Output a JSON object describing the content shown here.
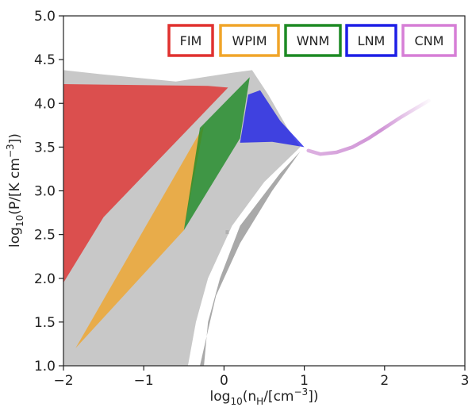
{
  "chart_data": {
    "type": "scatter",
    "title": "",
    "xlabel": {
      "prefix": "log",
      "sub": "10",
      "mid": "(n",
      "sub2": "H",
      "mid2": "/[cm",
      "sup": "−3",
      "suffix": "])"
    },
    "ylabel": {
      "prefix": "log",
      "sub": "10",
      "mid": "(P/[K cm",
      "sup": "−3",
      "suffix": "])"
    },
    "xlim": [
      -2,
      3
    ],
    "ylim": [
      1.0,
      5.0
    ],
    "xticks": [
      -2,
      -1,
      0,
      1,
      2,
      3
    ],
    "xtick_labels": [
      "−2",
      "−1",
      "0",
      "1",
      "2",
      "3"
    ],
    "yticks": [
      1.0,
      1.5,
      2.0,
      2.5,
      3.0,
      3.5,
      4.0,
      4.5,
      5.0
    ],
    "ytick_labels": [
      "1.0",
      "1.5",
      "2.0",
      "2.5",
      "3.0",
      "3.5",
      "4.0",
      "4.5",
      "5.0"
    ],
    "grid": false,
    "legend_position": "top-right",
    "background_color": "#c8c8c8",
    "series": [
      {
        "name": "FIM",
        "color": "#e0312f",
        "polygon": [
          [
            -2,
            1.95
          ],
          [
            -1.5,
            2.7
          ],
          [
            0.05,
            4.18
          ],
          [
            -0.2,
            4.2
          ],
          [
            -2,
            4.22
          ]
        ]
      },
      {
        "name": "WPIM",
        "color": "#f0a52a",
        "polygon": [
          [
            -1.85,
            1.2
          ],
          [
            -0.25,
            3.75
          ],
          [
            -0.5,
            2.55
          ]
        ]
      },
      {
        "name": "WNM",
        "color": "#1d8a24",
        "polygon": [
          [
            -0.5,
            2.55
          ],
          [
            -0.3,
            3.72
          ],
          [
            0.32,
            4.3
          ],
          [
            0.2,
            3.6
          ]
        ]
      },
      {
        "name": "LNM",
        "color": "#1d1fe6",
        "polygon": [
          [
            0.2,
            3.55
          ],
          [
            0.3,
            4.1
          ],
          [
            0.45,
            4.15
          ],
          [
            0.7,
            3.8
          ],
          [
            1.0,
            3.5
          ],
          [
            0.6,
            3.56
          ]
        ]
      },
      {
        "name": "CNM",
        "color": "#d67ed6",
        "x": [
          1.05,
          1.2,
          1.4,
          1.6,
          1.8,
          2.0,
          2.2,
          2.4,
          2.55
        ],
        "y": [
          3.46,
          3.42,
          3.44,
          3.5,
          3.6,
          3.72,
          3.84,
          3.95,
          4.03
        ]
      }
    ]
  }
}
